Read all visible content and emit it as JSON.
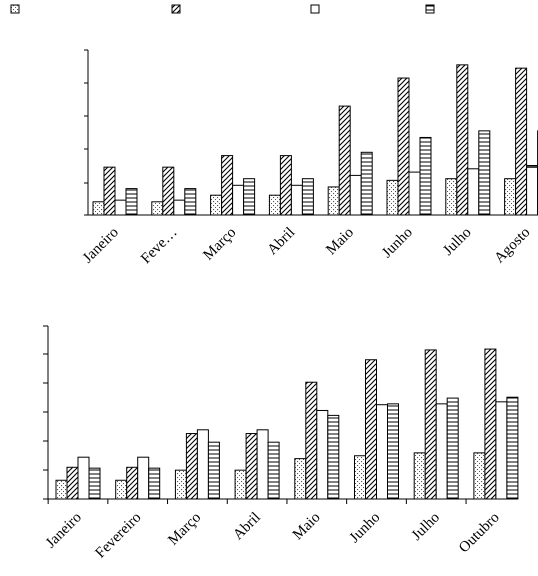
{
  "chart_data": [
    {
      "type": "bar",
      "title": "",
      "xlabel": "",
      "ylabel": "",
      "legend_placement": "top",
      "grid": false,
      "ylim": [
        0,
        100
      ],
      "categories": [
        "Janeiro",
        "Feve…",
        "Março",
        "Abril",
        "Maio",
        "Junho",
        "Julho",
        "Agosto"
      ],
      "series": [
        {
          "pattern": "dots",
          "values": [
            8,
            8,
            12,
            12,
            17,
            21,
            22,
            22
          ]
        },
        {
          "pattern": "diagonal",
          "values": [
            29,
            29,
            36,
            36,
            66,
            83,
            91,
            89
          ]
        },
        {
          "pattern": "hollow",
          "values": [
            9,
            9,
            18,
            18,
            24,
            26,
            28,
            30
          ]
        },
        {
          "pattern": "horizontal",
          "values": [
            16,
            16,
            22,
            22,
            38,
            47,
            51,
            51
          ]
        }
      ]
    },
    {
      "type": "bar",
      "title": "",
      "xlabel": "",
      "ylabel": "",
      "grid": false,
      "ylim": [
        0,
        6
      ],
      "categories": [
        "Janeiro",
        "Fevereiro",
        "Março",
        "Abril",
        "Maio",
        "Junho",
        "Julho",
        "Outubro"
      ],
      "series": [
        {
          "pattern": "dots",
          "values": [
            0.65,
            0.65,
            1.0,
            1.0,
            1.4,
            1.5,
            1.6,
            1.6
          ]
        },
        {
          "pattern": "diagonal",
          "values": [
            1.1,
            1.1,
            2.27,
            2.27,
            4.05,
            4.83,
            5.17,
            5.2
          ]
        },
        {
          "pattern": "hollow",
          "values": [
            1.45,
            1.45,
            2.4,
            2.4,
            3.07,
            3.27,
            3.3,
            3.37
          ]
        },
        {
          "pattern": "horizontal",
          "values": [
            1.07,
            1.07,
            1.97,
            1.97,
            2.9,
            3.3,
            3.5,
            3.53
          ]
        }
      ]
    }
  ],
  "colors": {
    "ink": "#000000",
    "background": "#ffffff",
    "dot_fill": "#bdbdbd"
  }
}
